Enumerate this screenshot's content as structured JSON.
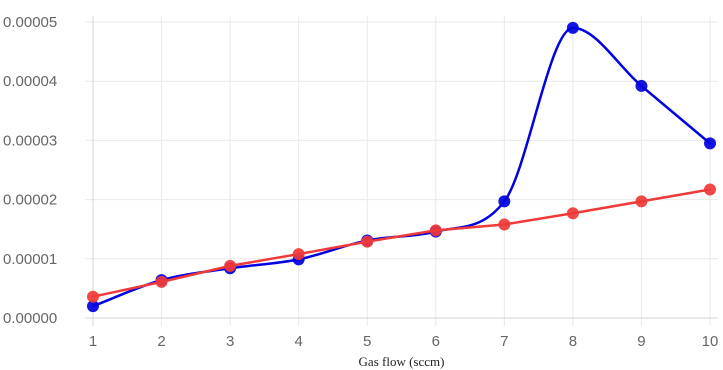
{
  "chart_data": {
    "type": "line",
    "title": "",
    "xlabel": "Gas flow (sccm)",
    "ylabel": "",
    "x": [
      1,
      2,
      3,
      4,
      5,
      6,
      7,
      8,
      9,
      10
    ],
    "x_tick_labels": [
      "1",
      "2",
      "3",
      "4",
      "5",
      "6",
      "7",
      "8",
      "9",
      "10"
    ],
    "y_tick_labels": [
      "0.00000",
      "0.00001",
      "0.00002",
      "0.00003",
      "0.00004",
      "0.00005"
    ],
    "y_ticks": [
      0,
      1e-05,
      2e-05,
      3e-05,
      4e-05,
      5e-05
    ],
    "xlim": [
      1,
      10
    ],
    "ylim": [
      0,
      5e-05
    ],
    "grid": true,
    "legend": "none",
    "series": [
      {
        "color": "#0000e0",
        "smooth": true,
        "values": [
          2e-06,
          6.4e-06,
          8.4e-06,
          9.9e-06,
          1.31e-05,
          1.46e-05,
          1.97e-05,
          4.9e-05,
          3.92e-05,
          2.95e-05
        ]
      },
      {
        "color": "#ee3a3a",
        "smooth": false,
        "values": [
          3.6e-06,
          6.1e-06,
          8.8e-06,
          1.08e-05,
          1.29e-05,
          1.48e-05,
          1.58e-05,
          1.77e-05,
          1.97e-05,
          2.17e-05
        ]
      }
    ]
  }
}
